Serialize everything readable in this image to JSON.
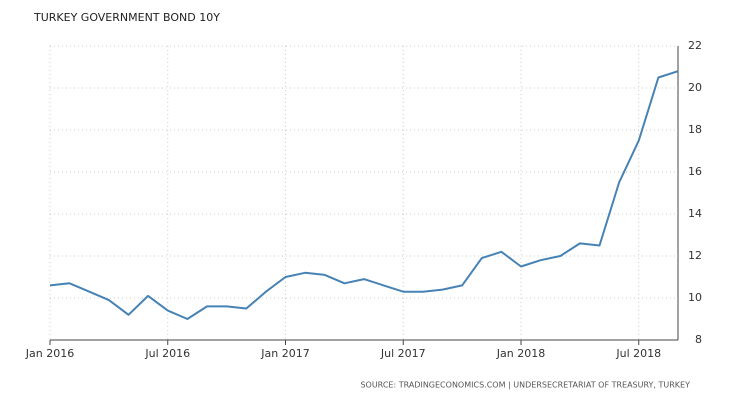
{
  "chart_data": {
    "type": "line",
    "title": "TURKEY GOVERNMENT BOND 10Y",
    "source": "SOURCE: TRADINGECONOMICS.COM | UNDERSECRETARIAT OF TREASURY, TURKEY",
    "x": [
      "2016-01",
      "2016-02",
      "2016-03",
      "2016-04",
      "2016-05",
      "2016-06",
      "2016-07",
      "2016-08",
      "2016-09",
      "2016-10",
      "2016-11",
      "2016-12",
      "2017-01",
      "2017-02",
      "2017-03",
      "2017-04",
      "2017-05",
      "2017-06",
      "2017-07",
      "2017-08",
      "2017-09",
      "2017-10",
      "2017-11",
      "2017-12",
      "2018-01",
      "2018-02",
      "2018-03",
      "2018-04",
      "2018-05",
      "2018-06",
      "2018-07",
      "2018-08",
      "2018-09"
    ],
    "series": [
      {
        "name": "Turkey Government Bond 10Y",
        "color": "#4682b4",
        "values": [
          10.6,
          10.7,
          10.3,
          9.9,
          9.2,
          10.1,
          9.4,
          9.0,
          9.6,
          9.6,
          9.5,
          10.3,
          11.0,
          11.2,
          11.1,
          10.7,
          10.9,
          10.6,
          10.3,
          10.3,
          10.4,
          10.6,
          11.9,
          12.2,
          11.5,
          11.8,
          12.0,
          12.6,
          12.5,
          15.5,
          17.5,
          20.5,
          20.8
        ]
      }
    ],
    "xlim": [
      "2016-01",
      "2018-09"
    ],
    "xticks": [
      {
        "value": "2016-01",
        "label": "Jan 2016"
      },
      {
        "value": "2016-07",
        "label": "Jul 2016"
      },
      {
        "value": "2017-01",
        "label": "Jan 2017"
      },
      {
        "value": "2017-07",
        "label": "Jul 2017"
      },
      {
        "value": "2018-01",
        "label": "Jan 2018"
      },
      {
        "value": "2018-07",
        "label": "Jul 2018"
      }
    ],
    "ylim": [
      8,
      22
    ],
    "yticks": [
      8,
      10,
      12,
      14,
      16,
      18,
      20,
      22
    ],
    "grid": true,
    "y_axis_side": "right"
  }
}
